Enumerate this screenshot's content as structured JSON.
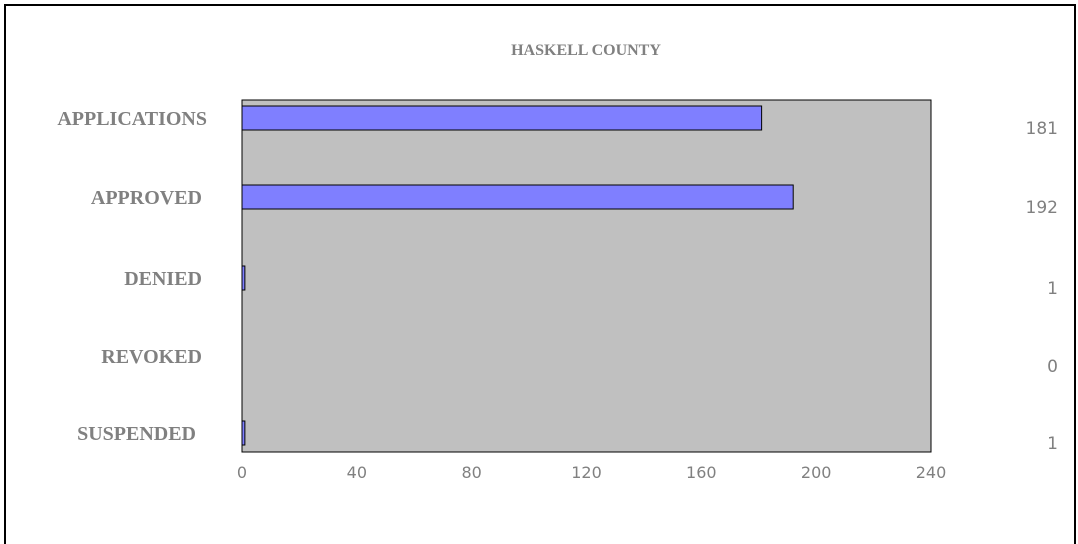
{
  "chart_data": {
    "type": "bar",
    "orientation": "horizontal",
    "title": "HASKELL COUNTY",
    "categories": [
      "APPLICATIONS",
      "APPROVED",
      "DENIED",
      "REVOKED",
      "SUSPENDED"
    ],
    "values": [
      181,
      192,
      1,
      0,
      1
    ],
    "value_labels": [
      "181",
      "192",
      "1",
      "0",
      "1"
    ],
    "xlim": [
      0,
      240
    ],
    "xticks": [
      0,
      40,
      80,
      120,
      160,
      200,
      240
    ],
    "xtick_labels": [
      "0",
      "40",
      "80",
      "120",
      "160",
      "200",
      "240"
    ],
    "grid": false,
    "colors": {
      "bar": "#7f7fff",
      "plot_bg": "#c0c0c0",
      "text": "#808080"
    }
  }
}
